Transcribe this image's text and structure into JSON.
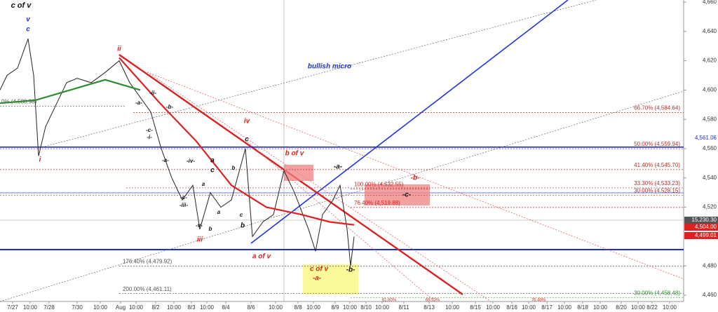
{
  "chart_data": {
    "type": "line",
    "xlim": [
      0,
      975
    ],
    "ylim": [
      4460,
      4660
    ],
    "yticks": [
      {
        "value": 4460,
        "label": "4,460"
      },
      {
        "value": 4480,
        "label": "4,480"
      },
      {
        "value": 4500,
        "label": "4,500"
      },
      {
        "value": 4520,
        "label": "4,520"
      },
      {
        "value": 4540,
        "label": "4,540"
      },
      {
        "value": 4560,
        "label": "4,560"
      },
      {
        "value": 4580,
        "label": "4,580"
      },
      {
        "value": 4600,
        "label": "4,600"
      },
      {
        "value": 4620,
        "label": "4,620"
      },
      {
        "value": 4640,
        "label": "4,640"
      },
      {
        "value": 4660,
        "label": "4,660"
      }
    ],
    "xticks": [
      {
        "value": 18,
        "label": "7/27"
      },
      {
        "value": 43,
        "label": "10:00"
      },
      {
        "value": 70,
        "label": "7/28"
      },
      {
        "value": 110,
        "label": "7/30"
      },
      {
        "value": 143,
        "label": "10:00"
      },
      {
        "value": 172,
        "label": "Aug"
      },
      {
        "value": 194,
        "label": "10:00"
      },
      {
        "value": 222,
        "label": "8/2"
      },
      {
        "value": 248,
        "label": "10:00"
      },
      {
        "value": 273,
        "label": "8/3"
      },
      {
        "value": 295,
        "label": "10:00"
      },
      {
        "value": 322,
        "label": "8/4"
      },
      {
        "value": 358,
        "label": "8/6"
      },
      {
        "value": 393,
        "label": "10:00"
      },
      {
        "value": 425,
        "label": "8/8"
      },
      {
        "value": 447,
        "label": "10:00"
      },
      {
        "value": 478,
        "label": "8/9"
      },
      {
        "value": 499,
        "label": "10:00"
      },
      {
        "value": 522,
        "label": "8/10"
      },
      {
        "value": 545,
        "label": "10:00"
      },
      {
        "value": 576,
        "label": "8/11"
      },
      {
        "value": 612,
        "label": "8/13"
      },
      {
        "value": 645,
        "label": "10:00"
      },
      {
        "value": 678,
        "label": "8/15"
      },
      {
        "value": 703,
        "label": "10:00"
      },
      {
        "value": 730,
        "label": "8/16"
      },
      {
        "value": 754,
        "label": "10:00"
      },
      {
        "value": 780,
        "label": "8/17"
      },
      {
        "value": 805,
        "label": "10:00"
      },
      {
        "value": 831,
        "label": "8/18"
      },
      {
        "value": 856,
        "label": "10:00"
      },
      {
        "value": 886,
        "label": "8/20"
      },
      {
        "value": 910,
        "label": "10:00"
      },
      {
        "value": 930,
        "label": "8/22"
      },
      {
        "value": 955,
        "label": "10:00"
      }
    ],
    "series": [
      {
        "color": "#222222",
        "x": [
          0,
          10,
          25,
          40,
          48,
          55,
          65,
          80,
          95,
          110,
          130,
          150,
          170,
          185,
          200,
          215,
          230,
          245,
          260,
          275,
          285,
          300,
          315,
          330,
          350,
          360,
          375,
          390,
          405,
          420,
          440,
          450,
          460,
          475,
          485,
          495,
          500,
          505
        ],
        "values": [
          4600,
          4610,
          4615,
          4635,
          4610,
          4555,
          4575,
          4590,
          4605,
          4608,
          4605,
          4612,
          4620,
          4605,
          4595,
          4585,
          4560,
          4540,
          4525,
          4535,
          4505,
          4530,
          4520,
          4525,
          4560,
          4500,
          4510,
          4515,
          4545,
          4530,
          4505,
          4490,
          4515,
          4525,
          4535,
          4505,
          4480,
          4500
        ]
      },
      {
        "color": "#2e8b2e",
        "x": [
          0,
          50,
          100,
          150,
          200
        ],
        "values": [
          4591,
          4593,
          4600,
          4607,
          4600
        ]
      },
      {
        "color": "#e02020",
        "x": [
          170,
          230,
          280,
          330,
          380,
          430,
          470,
          505
        ],
        "values": [
          4622,
          4590,
          4565,
          4535,
          4520,
          4515,
          4510,
          4508
        ]
      }
    ],
    "levels": [
      {
        "value": 4584.64,
        "label": "66.70% (4,584.64)"
      },
      {
        "value": 4559.94,
        "label": "50.00% (4,559.94)"
      },
      {
        "value": 4545.7,
        "label": "41.40% (4,545.70)"
      },
      {
        "value": 4533.23,
        "label": "33.30% (4,533.23)"
      },
      {
        "value": 4528.15,
        "label": "30.00% (4,528.15)"
      },
      {
        "value": 4532.55,
        "label": "100.00% (4,532.55)"
      },
      {
        "value": 4519.88,
        "label": "76.40% (4,519.88)"
      },
      {
        "value": 4479.92,
        "label": "176.40% (4,479.92)"
      },
      {
        "value": 4461.11,
        "label": "200.00% (4,461.11)"
      },
      {
        "value": 4458.48,
        "label": "30.00% (4,458.48)"
      },
      {
        "value": 4588.98,
        "label": "0% (4,588.98)"
      }
    ],
    "price_labels": [
      {
        "value": 4561.06,
        "label": "4,561.06"
      },
      {
        "value": 15230.3,
        "label": "15,230.30"
      },
      {
        "value": 4504,
        "label": "4,504.00"
      },
      {
        "value": 4499.01,
        "label": "4,499.01"
      }
    ],
    "annotations": [
      "c of v",
      "v",
      "c",
      "ii",
      "i",
      "-ii-",
      "-a-",
      "-b-",
      "-c-",
      "-i-",
      "-a-",
      "-iv-",
      "a",
      "c",
      "a",
      "b",
      "-c-",
      "-iii-",
      "a",
      "-v-",
      "b",
      "c",
      "b",
      "iii",
      "c",
      "iv",
      "b of v",
      "-a-",
      "-b-",
      "-c-",
      "a of v",
      "c of v",
      "-a-",
      "-b-",
      "bullish  micro",
      "61.80%",
      "69.70%",
      "76.40%"
    ]
  }
}
